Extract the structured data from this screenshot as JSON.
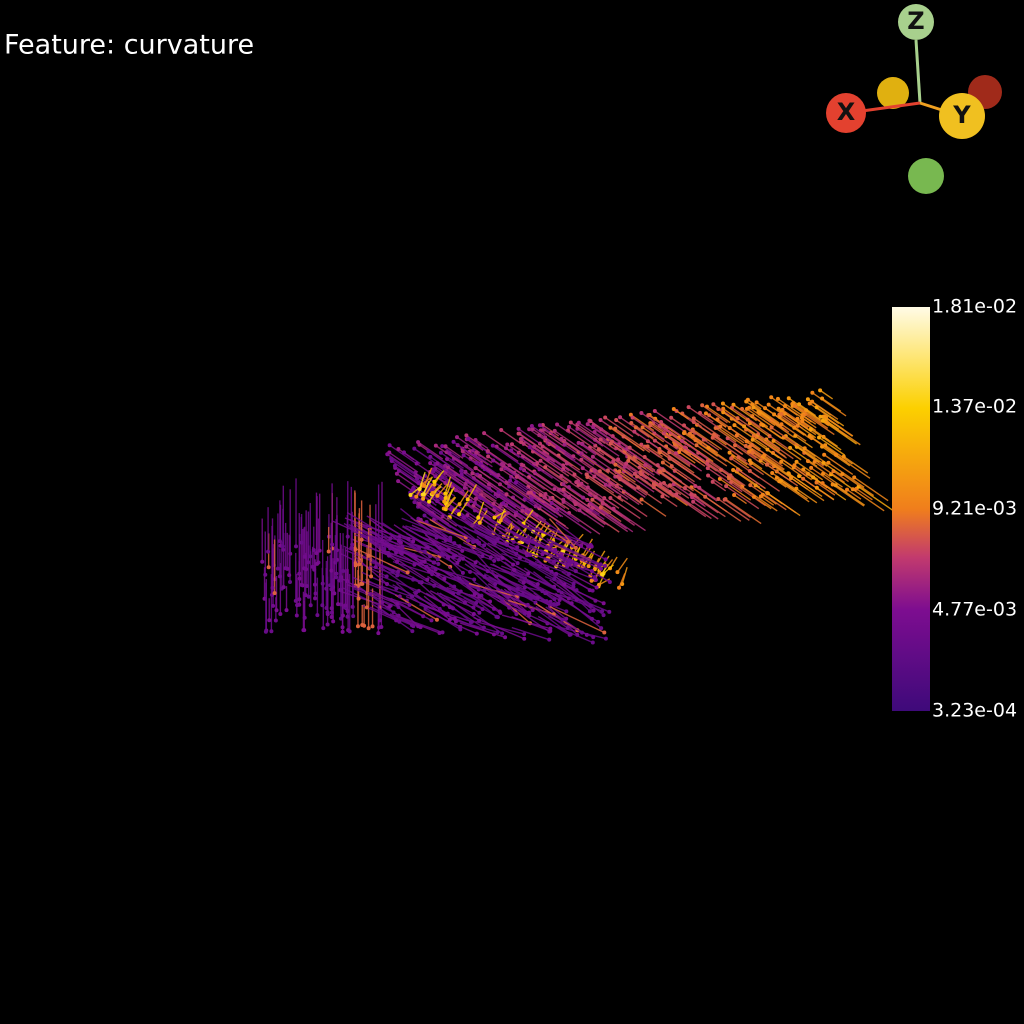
{
  "title": "Feature: curvature",
  "axes": {
    "x": "X",
    "y": "Y",
    "z": "Z"
  },
  "colorbar": {
    "range": [
      0.000323,
      0.0181
    ],
    "ticks": [
      {
        "value": 0.0181,
        "label": "1.81e-02"
      },
      {
        "value": 0.0137,
        "label": "1.37e-02"
      },
      {
        "value": 0.00921,
        "label": "9.21e-03"
      },
      {
        "value": 0.00477,
        "label": "4.77e-03"
      },
      {
        "value": 0.000323,
        "label": "3.23e-04"
      }
    ]
  }
}
